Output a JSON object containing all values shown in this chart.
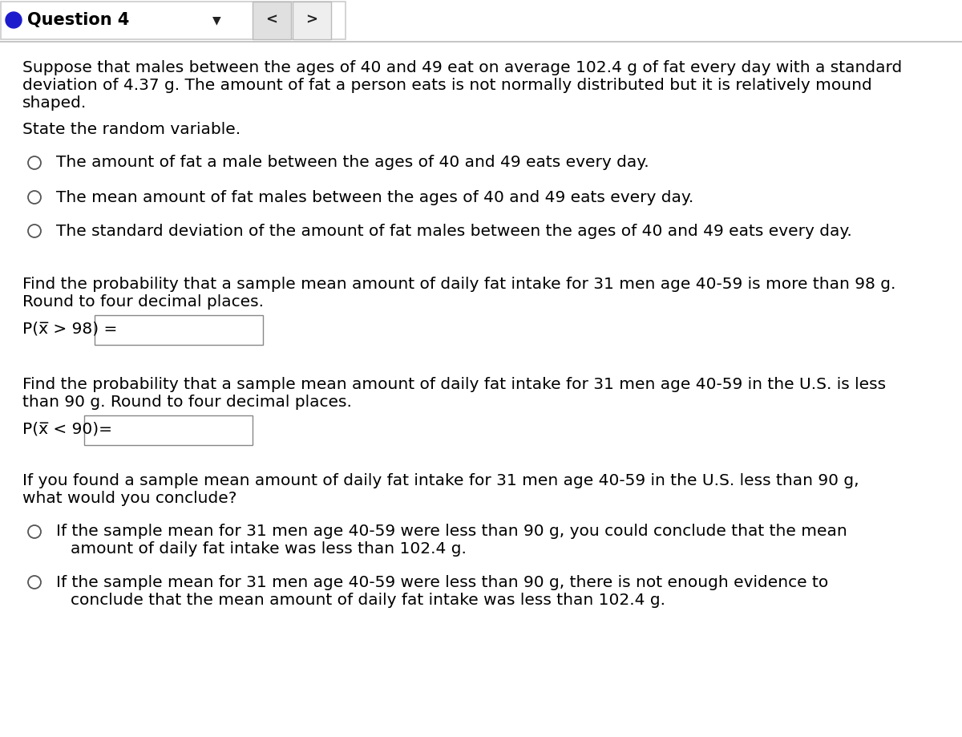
{
  "bg_color": "#ffffff",
  "header_bg": "#f5f5f5",
  "header_border_color": "#cccccc",
  "header_title": "Question 4",
  "header_dot_color": "#1c1ccc",
  "body_text_color": "#000000",
  "font_size_body": 14.5,
  "font_size_header": 15,
  "intro_text_line1": "Suppose that males between the ages of 40 and 49 eat on average 102.4 g of fat every day with a standard",
  "intro_text_line2": "deviation of 4.37 g. The amount of fat a person eats is not normally distributed but it is relatively mound",
  "intro_text_line3": "shaped.",
  "state_rv_label": "State the random variable.",
  "radio_options_1": [
    "The amount of fat a male between the ages of 40 and 49 eats every day.",
    "The mean amount of fat males between the ages of 40 and 49 eats every day.",
    "The standard deviation of the amount of fat males between the ages of 40 and 49 eats every day."
  ],
  "prob1_text_line1": "Find the probability that a sample mean amount of daily fat intake for 31 men age 40-59 is more than 98 g.",
  "prob1_text_line2": "Round to four decimal places.",
  "prob1_label": "P(x̅ > 98) =",
  "prob2_text_line1": "Find the probability that a sample mean amount of daily fat intake for 31 men age 40-59 in the U.S. is less",
  "prob2_text_line2": "than 90 g. Round to four decimal places.",
  "prob2_label": "P(x̅ < 90)=",
  "conclude_text_line1": "If you found a sample mean amount of daily fat intake for 31 men age 40-59 in the U.S. less than 90 g,",
  "conclude_text_line2": "what would you conclude?",
  "radio_options_2_line1": [
    "If the sample mean for 31 men age 40-59 were less than 90 g, you could conclude that the mean",
    "If the sample mean for 31 men age 40-59 were less than 90 g, there is not enough evidence to"
  ],
  "radio_options_2_line2": [
    "amount of daily fat intake was less than 102.4 g.",
    "conclude that the mean amount of daily fat intake was less than 102.4 g."
  ]
}
